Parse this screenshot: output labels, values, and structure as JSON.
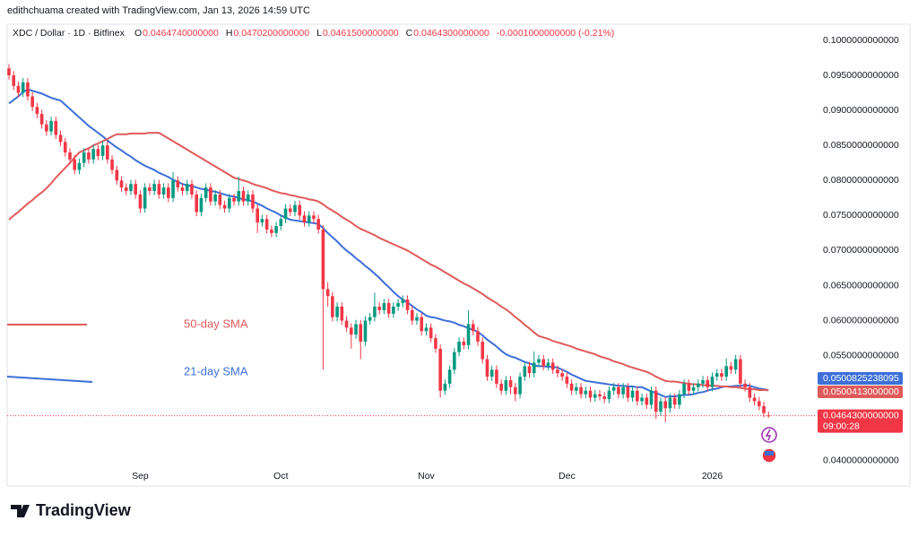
{
  "header_credit": "edithchuama created with TradingView.com, Jan 13, 2026 14:59 UTC",
  "logo": "TradingView",
  "chart_data": {
    "type": "candlestick",
    "title": "XDC / Dollar · 1D · Bitfinex",
    "ohlc_legend": [
      {
        "key": "O",
        "label": "0.0464740000000"
      },
      {
        "key": "H",
        "label": "0.0470200000000"
      },
      {
        "key": "L",
        "label": "0.0461500000000"
      },
      {
        "key": "C",
        "label": "0.0464300000000"
      }
    ],
    "change": "-0.0001000000000 (-0.21%)",
    "categories": [
      null,
      null,
      null,
      null,
      null,
      null,
      null,
      null,
      null,
      null,
      null,
      null,
      null,
      null,
      null,
      null,
      null,
      null,
      null,
      null,
      null,
      null,
      null,
      null,
      null,
      null,
      null,
      null,
      "Sep",
      null,
      null,
      null,
      null,
      null,
      null,
      null,
      null,
      null,
      null,
      null,
      null,
      null,
      null,
      null,
      null,
      null,
      null,
      null,
      null,
      null,
      null,
      null,
      null,
      null,
      null,
      null,
      null,
      null,
      "Oct",
      null,
      null,
      null,
      null,
      null,
      null,
      null,
      null,
      null,
      null,
      null,
      null,
      null,
      null,
      null,
      null,
      null,
      null,
      null,
      null,
      null,
      null,
      null,
      null,
      null,
      null,
      null,
      null,
      null,
      null,
      "Nov",
      null,
      null,
      null,
      null,
      null,
      null,
      null,
      null,
      null,
      null,
      null,
      null,
      null,
      null,
      null,
      null,
      null,
      null,
      null,
      null,
      null,
      null,
      null,
      null,
      null,
      null,
      null,
      null,
      null,
      "Dec",
      null,
      null,
      null,
      null,
      null,
      null,
      null,
      null,
      null,
      null,
      null,
      null,
      null,
      null,
      null,
      null,
      null,
      null,
      null,
      null,
      null,
      null,
      null,
      null,
      null,
      null,
      null,
      null,
      null,
      null,
      "2026",
      null,
      null,
      null,
      null,
      null,
      null,
      null,
      null,
      null,
      null,
      null,
      null
    ],
    "open": [
      0.096,
      0.095,
      0.0935,
      0.0925,
      0.094,
      0.092,
      0.0905,
      0.0895,
      0.088,
      0.087,
      0.0885,
      0.0865,
      0.0855,
      0.084,
      0.083,
      0.0815,
      0.0825,
      0.084,
      0.083,
      0.0845,
      0.0835,
      0.085,
      0.083,
      0.0815,
      0.08,
      0.079,
      0.0785,
      0.0795,
      0.078,
      0.076,
      0.079,
      0.0785,
      0.0795,
      0.078,
      0.079,
      0.0775,
      0.08,
      0.079,
      0.0785,
      0.0795,
      0.078,
      0.0755,
      0.0775,
      0.079,
      0.077,
      0.078,
      0.0765,
      0.076,
      0.0775,
      0.077,
      0.0785,
      0.077,
      0.078,
      0.076,
      0.074,
      0.0745,
      0.073,
      0.0725,
      0.0735,
      0.0745,
      0.076,
      0.0755,
      0.0765,
      0.075,
      0.074,
      0.075,
      0.0745,
      0.073,
      0.0645,
      0.0635,
      0.0605,
      0.062,
      0.06,
      0.059,
      0.058,
      0.0595,
      0.057,
      0.06,
      0.0605,
      0.062,
      0.0615,
      0.0625,
      0.061,
      0.062,
      0.0625,
      0.063,
      0.0615,
      0.06,
      0.0605,
      0.0585,
      0.059,
      0.0575,
      0.056,
      0.05,
      0.051,
      0.053,
      0.0555,
      0.057,
      0.0565,
      0.0595,
      0.0585,
      0.057,
      0.0545,
      0.052,
      0.053,
      0.051,
      0.05,
      0.0515,
      0.0505,
      0.0495,
      0.052,
      0.0535,
      0.0525,
      0.054,
      0.0545,
      0.0535,
      0.054,
      0.053,
      0.0525,
      0.052,
      0.051,
      0.05,
      0.0505,
      0.0495,
      0.05,
      0.049,
      0.0495,
      0.0492,
      0.0488,
      0.05,
      0.0505,
      0.0495,
      0.0505,
      0.049,
      0.05,
      0.0485,
      0.049,
      0.048,
      0.05,
      0.047,
      0.0485,
      0.0475,
      0.049,
      0.048,
      0.0495,
      0.051,
      0.05,
      0.0505,
      0.051,
      0.0515,
      0.0505,
      0.052,
      0.0525,
      0.052,
      0.0535,
      0.053,
      0.0545,
      0.051,
      0.0505,
      0.049,
      0.0485,
      0.0478,
      0.046474
    ],
    "high": [
      0.0966,
      0.0956,
      0.0941,
      0.0946,
      0.0946,
      0.0926,
      0.0911,
      0.0901,
      0.0886,
      0.0891,
      0.0891,
      0.0871,
      0.0861,
      0.0846,
      0.0836,
      0.0831,
      0.0846,
      0.0846,
      0.0851,
      0.0851,
      0.0856,
      0.0856,
      0.0836,
      0.0821,
      0.0806,
      0.0796,
      0.0801,
      0.0801,
      0.0786,
      0.0796,
      0.0796,
      0.0801,
      0.0801,
      0.0796,
      0.0796,
      0.0812,
      0.0806,
      0.0796,
      0.0801,
      0.0801,
      0.0786,
      0.0781,
      0.0796,
      0.0796,
      0.0786,
      0.0786,
      0.0771,
      0.0781,
      0.0781,
      0.0805,
      0.0791,
      0.0786,
      0.0786,
      0.0766,
      0.0751,
      0.0751,
      0.0736,
      0.0741,
      0.0751,
      0.0766,
      0.0766,
      0.0771,
      0.0771,
      0.0756,
      0.0756,
      0.0756,
      0.0751,
      0.0736,
      0.0655,
      0.0641,
      0.0626,
      0.0626,
      0.0606,
      0.0596,
      0.0601,
      0.0601,
      0.0606,
      0.0611,
      0.064,
      0.0626,
      0.0631,
      0.0631,
      0.0626,
      0.0631,
      0.0636,
      0.0636,
      0.0621,
      0.0611,
      0.0611,
      0.0596,
      0.0596,
      0.0581,
      0.0566,
      0.0516,
      0.0536,
      0.0561,
      0.0576,
      0.0576,
      0.0615,
      0.0601,
      0.0591,
      0.0576,
      0.0551,
      0.0536,
      0.0536,
      0.0516,
      0.0521,
      0.0521,
      0.0511,
      0.0526,
      0.0541,
      0.0541,
      0.0556,
      0.0551,
      0.0551,
      0.0546,
      0.0546,
      0.0536,
      0.0531,
      0.0526,
      0.0516,
      0.0511,
      0.0511,
      0.0506,
      0.0506,
      0.0501,
      0.0501,
      0.0498,
      0.0506,
      0.0511,
      0.0511,
      0.0511,
      0.0511,
      0.0506,
      0.0506,
      0.0496,
      0.0496,
      0.0506,
      0.0506,
      0.0491,
      0.0491,
      0.0496,
      0.0496,
      0.0501,
      0.0516,
      0.0516,
      0.0511,
      0.0516,
      0.0521,
      0.0521,
      0.0526,
      0.0531,
      0.0531,
      0.0546,
      0.0541,
      0.0551,
      0.0551,
      0.0516,
      0.0511,
      0.0496,
      0.0491,
      0.0484,
      0.04702
    ],
    "low": [
      0.0944,
      0.0929,
      0.0919,
      0.0919,
      0.0914,
      0.0899,
      0.0889,
      0.0874,
      0.0864,
      0.0864,
      0.0859,
      0.0849,
      0.0834,
      0.0824,
      0.0809,
      0.0809,
      0.0819,
      0.0824,
      0.0824,
      0.0829,
      0.0829,
      0.0824,
      0.0809,
      0.0794,
      0.0784,
      0.0779,
      0.0779,
      0.0774,
      0.0754,
      0.0754,
      0.0779,
      0.0779,
      0.0774,
      0.0774,
      0.0769,
      0.0769,
      0.0784,
      0.0779,
      0.0779,
      0.0774,
      0.0749,
      0.0749,
      0.0769,
      0.0764,
      0.0764,
      0.0759,
      0.0754,
      0.0754,
      0.0764,
      0.0764,
      0.0764,
      0.0764,
      0.0754,
      0.0725,
      0.0734,
      0.0724,
      0.0719,
      0.0719,
      0.0729,
      0.0739,
      0.0749,
      0.0749,
      0.0744,
      0.0734,
      0.0734,
      0.0739,
      0.0724,
      0.053,
      0.062,
      0.0599,
      0.0599,
      0.0594,
      0.0584,
      0.056,
      0.0574,
      0.0545,
      0.0564,
      0.0594,
      0.0599,
      0.0609,
      0.0609,
      0.0604,
      0.0604,
      0.0614,
      0.0619,
      0.0609,
      0.0594,
      0.0594,
      0.0579,
      0.0579,
      0.0569,
      0.0554,
      0.049,
      0.0494,
      0.0504,
      0.0524,
      0.0549,
      0.0559,
      0.0559,
      0.0579,
      0.0564,
      0.0539,
      0.0514,
      0.0514,
      0.0504,
      0.0494,
      0.0494,
      0.0495,
      0.0485,
      0.0489,
      0.0514,
      0.0519,
      0.0519,
      0.0534,
      0.0529,
      0.0529,
      0.0524,
      0.0519,
      0.0514,
      0.0504,
      0.0494,
      0.0494,
      0.0489,
      0.0489,
      0.0484,
      0.0484,
      0.0486,
      0.0482,
      0.0482,
      0.0494,
      0.0489,
      0.0489,
      0.0484,
      0.0484,
      0.0479,
      0.0479,
      0.0474,
      0.0474,
      0.046,
      0.0464,
      0.0455,
      0.0469,
      0.0474,
      0.0474,
      0.0489,
      0.0494,
      0.0494,
      0.0499,
      0.0504,
      0.0499,
      0.0499,
      0.0514,
      0.0514,
      0.0514,
      0.0524,
      0.0524,
      0.0504,
      0.0499,
      0.0484,
      0.0479,
      0.0472,
      0.0462,
      0.04615
    ],
    "close": [
      0.095,
      0.0935,
      0.0925,
      0.094,
      0.092,
      0.0905,
      0.0895,
      0.088,
      0.087,
      0.0885,
      0.0865,
      0.0855,
      0.084,
      0.083,
      0.0815,
      0.0825,
      0.084,
      0.083,
      0.0845,
      0.0835,
      0.085,
      0.083,
      0.0815,
      0.08,
      0.079,
      0.0785,
      0.0795,
      0.078,
      0.076,
      0.079,
      0.0785,
      0.0795,
      0.078,
      0.079,
      0.0775,
      0.08,
      0.079,
      0.0785,
      0.0795,
      0.078,
      0.0755,
      0.0775,
      0.079,
      0.077,
      0.078,
      0.0765,
      0.076,
      0.0775,
      0.077,
      0.0785,
      0.077,
      0.078,
      0.076,
      0.074,
      0.0745,
      0.073,
      0.0725,
      0.0735,
      0.0745,
      0.076,
      0.0755,
      0.0765,
      0.075,
      0.074,
      0.075,
      0.0745,
      0.073,
      0.0645,
      0.0635,
      0.0605,
      0.062,
      0.06,
      0.059,
      0.058,
      0.0595,
      0.057,
      0.06,
      0.0605,
      0.062,
      0.0615,
      0.0625,
      0.061,
      0.062,
      0.0625,
      0.063,
      0.0615,
      0.06,
      0.0605,
      0.0585,
      0.059,
      0.0575,
      0.056,
      0.05,
      0.051,
      0.053,
      0.0555,
      0.057,
      0.0565,
      0.0595,
      0.0585,
      0.057,
      0.0545,
      0.052,
      0.053,
      0.051,
      0.05,
      0.0515,
      0.0505,
      0.0495,
      0.052,
      0.0535,
      0.0525,
      0.054,
      0.0545,
      0.0535,
      0.054,
      0.053,
      0.0525,
      0.052,
      0.051,
      0.05,
      0.0505,
      0.0495,
      0.05,
      0.049,
      0.0495,
      0.0492,
      0.0488,
      0.05,
      0.0505,
      0.0495,
      0.0505,
      0.049,
      0.05,
      0.0485,
      0.049,
      0.048,
      0.05,
      0.047,
      0.0485,
      0.0475,
      0.049,
      0.048,
      0.0495,
      0.051,
      0.05,
      0.0505,
      0.051,
      0.0515,
      0.0505,
      0.052,
      0.0525,
      0.052,
      0.0535,
      0.053,
      0.0545,
      0.051,
      0.0505,
      0.049,
      0.0485,
      0.0478,
      0.0468,
      0.04643
    ],
    "last_price_label": "0.0464300000000",
    "countdown": "09:00:28",
    "up_color": "#089981",
    "down_color": "#f23645",
    "series": [
      {
        "name": "21-day SMA",
        "color": "#3c6fd8",
        "value_label": "0.0500825238095",
        "values": [
          0.091,
          0.0915,
          0.092,
          0.0926,
          0.093,
          0.0928,
          0.0926,
          0.0924,
          0.0921,
          0.0918,
          0.0916,
          0.0914,
          0.0908,
          0.0902,
          0.0896,
          0.089,
          0.0884,
          0.0878,
          0.0873,
          0.0868,
          0.0863,
          0.0857,
          0.0852,
          0.0847,
          0.0843,
          0.0838,
          0.0834,
          0.0829,
          0.0825,
          0.0821,
          0.0818,
          0.0815,
          0.0811,
          0.0808,
          0.0805,
          0.0801,
          0.0798,
          0.0795,
          0.0793,
          0.0792,
          0.079,
          0.0788,
          0.0787,
          0.0785,
          0.0784,
          0.0782,
          0.078,
          0.0778,
          0.0777,
          0.0775,
          0.0773,
          0.0772,
          0.077,
          0.0767,
          0.0764,
          0.076,
          0.0757,
          0.0754,
          0.075,
          0.0747,
          0.0744,
          0.0743,
          0.0742,
          0.0741,
          0.074,
          0.0739,
          0.0738,
          0.0732,
          0.0725,
          0.0719,
          0.0713,
          0.0706,
          0.07,
          0.0695,
          0.0689,
          0.0684,
          0.0678,
          0.0673,
          0.0667,
          0.0661,
          0.0654,
          0.0648,
          0.0641,
          0.0635,
          0.063,
          0.0626,
          0.0621,
          0.0616,
          0.0612,
          0.0607,
          0.0605,
          0.0604,
          0.0602,
          0.06,
          0.0599,
          0.0597,
          0.0594,
          0.0592,
          0.0589,
          0.0587,
          0.0584,
          0.0579,
          0.0573,
          0.0568,
          0.0563,
          0.0557,
          0.0552,
          0.0549,
          0.0547,
          0.0544,
          0.0541,
          0.0539,
          0.0536,
          0.0535,
          0.0535,
          0.0534,
          0.0534,
          0.0533,
          0.053,
          0.0527,
          0.0523,
          0.052,
          0.0517,
          0.0514,
          0.0513,
          0.0512,
          0.0511,
          0.051,
          0.0509,
          0.0508,
          0.0507,
          0.0507,
          0.0506,
          0.0506,
          0.0505,
          0.0505,
          0.0502,
          0.0499,
          0.0497,
          0.0494,
          0.0491,
          0.0492,
          0.0492,
          0.0493,
          0.0494,
          0.0494,
          0.0495,
          0.0497,
          0.0498,
          0.05,
          0.0502,
          0.0503,
          0.0505,
          0.0506,
          0.0506,
          0.0507,
          0.0507,
          0.0508,
          0.0507,
          0.0505,
          0.0503,
          0.0502,
          0.0500825238095
        ]
      },
      {
        "name": "50-day SMA",
        "color": "#e05a5a",
        "value_label": "0.0500413000000",
        "values": [
          0.0744,
          0.075,
          0.0755,
          0.0761,
          0.0767,
          0.0772,
          0.0778,
          0.0783,
          0.0789,
          0.0796,
          0.0804,
          0.0811,
          0.0818,
          0.0825,
          0.0833,
          0.084,
          0.0843,
          0.0846,
          0.085,
          0.0853,
          0.0856,
          0.0859,
          0.0863,
          0.0866,
          0.0866,
          0.0866,
          0.0867,
          0.0867,
          0.0867,
          0.0867,
          0.0868,
          0.0868,
          0.0868,
          0.0864,
          0.086,
          0.0856,
          0.0852,
          0.0848,
          0.0844,
          0.084,
          0.0836,
          0.0832,
          0.0828,
          0.0824,
          0.082,
          0.0816,
          0.0812,
          0.0808,
          0.0804,
          0.0802,
          0.08,
          0.0798,
          0.0795,
          0.0793,
          0.0791,
          0.0789,
          0.0786,
          0.0784,
          0.0782,
          0.0781,
          0.0779,
          0.0778,
          0.0776,
          0.0775,
          0.0773,
          0.0772,
          0.077,
          0.0766,
          0.0761,
          0.0757,
          0.0753,
          0.0748,
          0.0744,
          0.074,
          0.0735,
          0.0731,
          0.0728,
          0.0725,
          0.0722,
          0.0718,
          0.0715,
          0.0712,
          0.0709,
          0.0706,
          0.0703,
          0.07,
          0.0696,
          0.0692,
          0.0688,
          0.0684,
          0.068,
          0.0677,
          0.0673,
          0.0669,
          0.0665,
          0.0661,
          0.0657,
          0.0653,
          0.065,
          0.0646,
          0.0642,
          0.0638,
          0.0633,
          0.0629,
          0.0625,
          0.062,
          0.0616,
          0.0611,
          0.0605,
          0.06,
          0.0594,
          0.0589,
          0.0583,
          0.0578,
          0.0576,
          0.0574,
          0.0571,
          0.0569,
          0.0567,
          0.0565,
          0.0563,
          0.056,
          0.0558,
          0.0556,
          0.0554,
          0.0552,
          0.0549,
          0.0547,
          0.0545,
          0.0542,
          0.054,
          0.0538,
          0.0535,
          0.0533,
          0.0531,
          0.0529,
          0.0527,
          0.0524,
          0.052,
          0.0517,
          0.0514,
          0.0513,
          0.0513,
          0.0512,
          0.0511,
          0.051,
          0.0509,
          0.0509,
          0.0508,
          0.0508,
          0.0507,
          0.0507,
          0.0506,
          0.0506,
          0.0505,
          0.0505,
          0.0504,
          0.0503,
          0.0502,
          0.0502,
          0.0501,
          0.0501,
          0.0500413
        ]
      }
    ],
    "ylim": [
      0.0364,
      0.1023
    ],
    "yticks": [
      {
        "value": 0.1,
        "label": "0.1000000000000"
      },
      {
        "value": 0.095,
        "label": "0.0950000000000"
      },
      {
        "value": 0.09,
        "label": "0.0900000000000"
      },
      {
        "value": 0.085,
        "label": "0.0850000000000"
      },
      {
        "value": 0.08,
        "label": "0.0800000000000"
      },
      {
        "value": 0.075,
        "label": "0.0750000000000"
      },
      {
        "value": 0.07,
        "label": "0.0700000000000"
      },
      {
        "value": 0.065,
        "label": "0.0650000000000"
      },
      {
        "value": 0.06,
        "label": "0.0600000000000"
      },
      {
        "value": 0.055,
        "label": "0.0550000000000"
      },
      {
        "value": 0.04,
        "label": "0.0400000000000"
      }
    ],
    "grid": false
  }
}
